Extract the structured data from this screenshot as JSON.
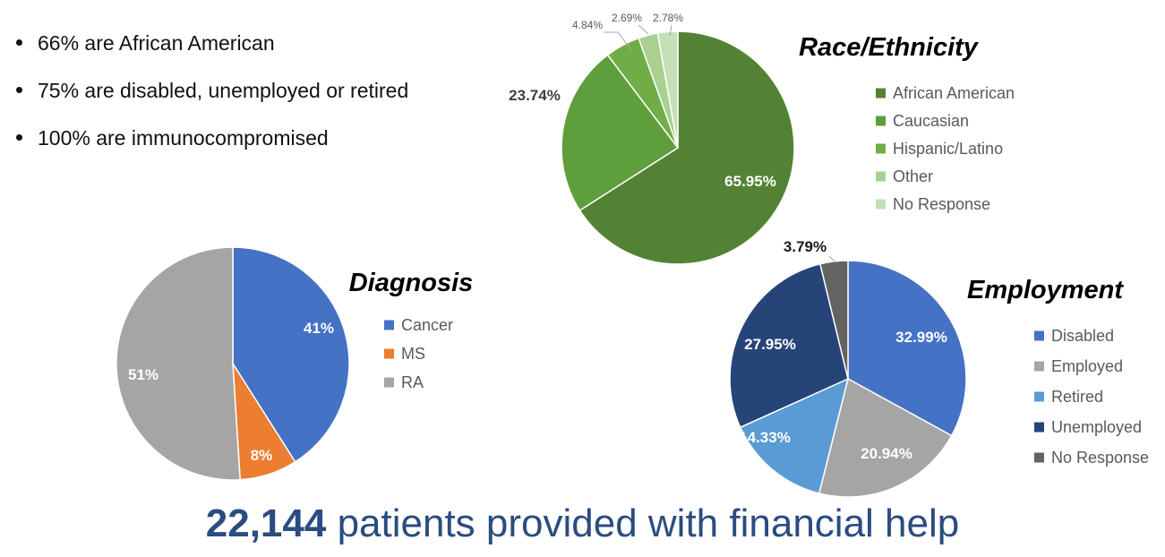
{
  "bullets": [
    "66% are African American",
    "75% are disabled, unemployed or retired",
    "100% are immunocompromised"
  ],
  "headline": {
    "number": "22,144",
    "text": " patients provided with financial help"
  },
  "colors": {
    "headline": "#2a4c80"
  },
  "chart_data": [
    {
      "type": "pie",
      "title": "Race/Ethnicity",
      "categories": [
        "African American",
        "Caucasian",
        "Hispanic/Latino",
        "Other",
        "No Response"
      ],
      "values": [
        65.95,
        23.74,
        4.84,
        2.69,
        2.78
      ],
      "labels": [
        "65.95%",
        "23.74%",
        "4.84%",
        "2.69%",
        "2.78%"
      ],
      "colors": [
        "#548235",
        "#5f9e3c",
        "#70ad47",
        "#a9d08e",
        "#c5e0b4"
      ],
      "legend": "right"
    },
    {
      "type": "pie",
      "title": "Diagnosis",
      "categories": [
        "Cancer",
        "MS",
        "RA"
      ],
      "values": [
        41,
        8,
        51
      ],
      "labels": [
        "41%",
        "8%",
        "51%"
      ],
      "colors": [
        "#4472c4",
        "#ed7d31",
        "#a5a5a5"
      ],
      "legend": "right"
    },
    {
      "type": "pie",
      "title": "Employment",
      "categories": [
        "Disabled",
        "Employed",
        "Retired",
        "Unemployed",
        "No Response"
      ],
      "values": [
        32.99,
        20.94,
        14.33,
        27.95,
        3.79
      ],
      "labels": [
        "32.99%",
        "20.94%",
        "14.33%",
        "27.95%",
        "3.79%"
      ],
      "colors": [
        "#4472c4",
        "#a5a5a5",
        "#5b9bd5",
        "#264478",
        "#636363"
      ],
      "legend": "right"
    }
  ]
}
